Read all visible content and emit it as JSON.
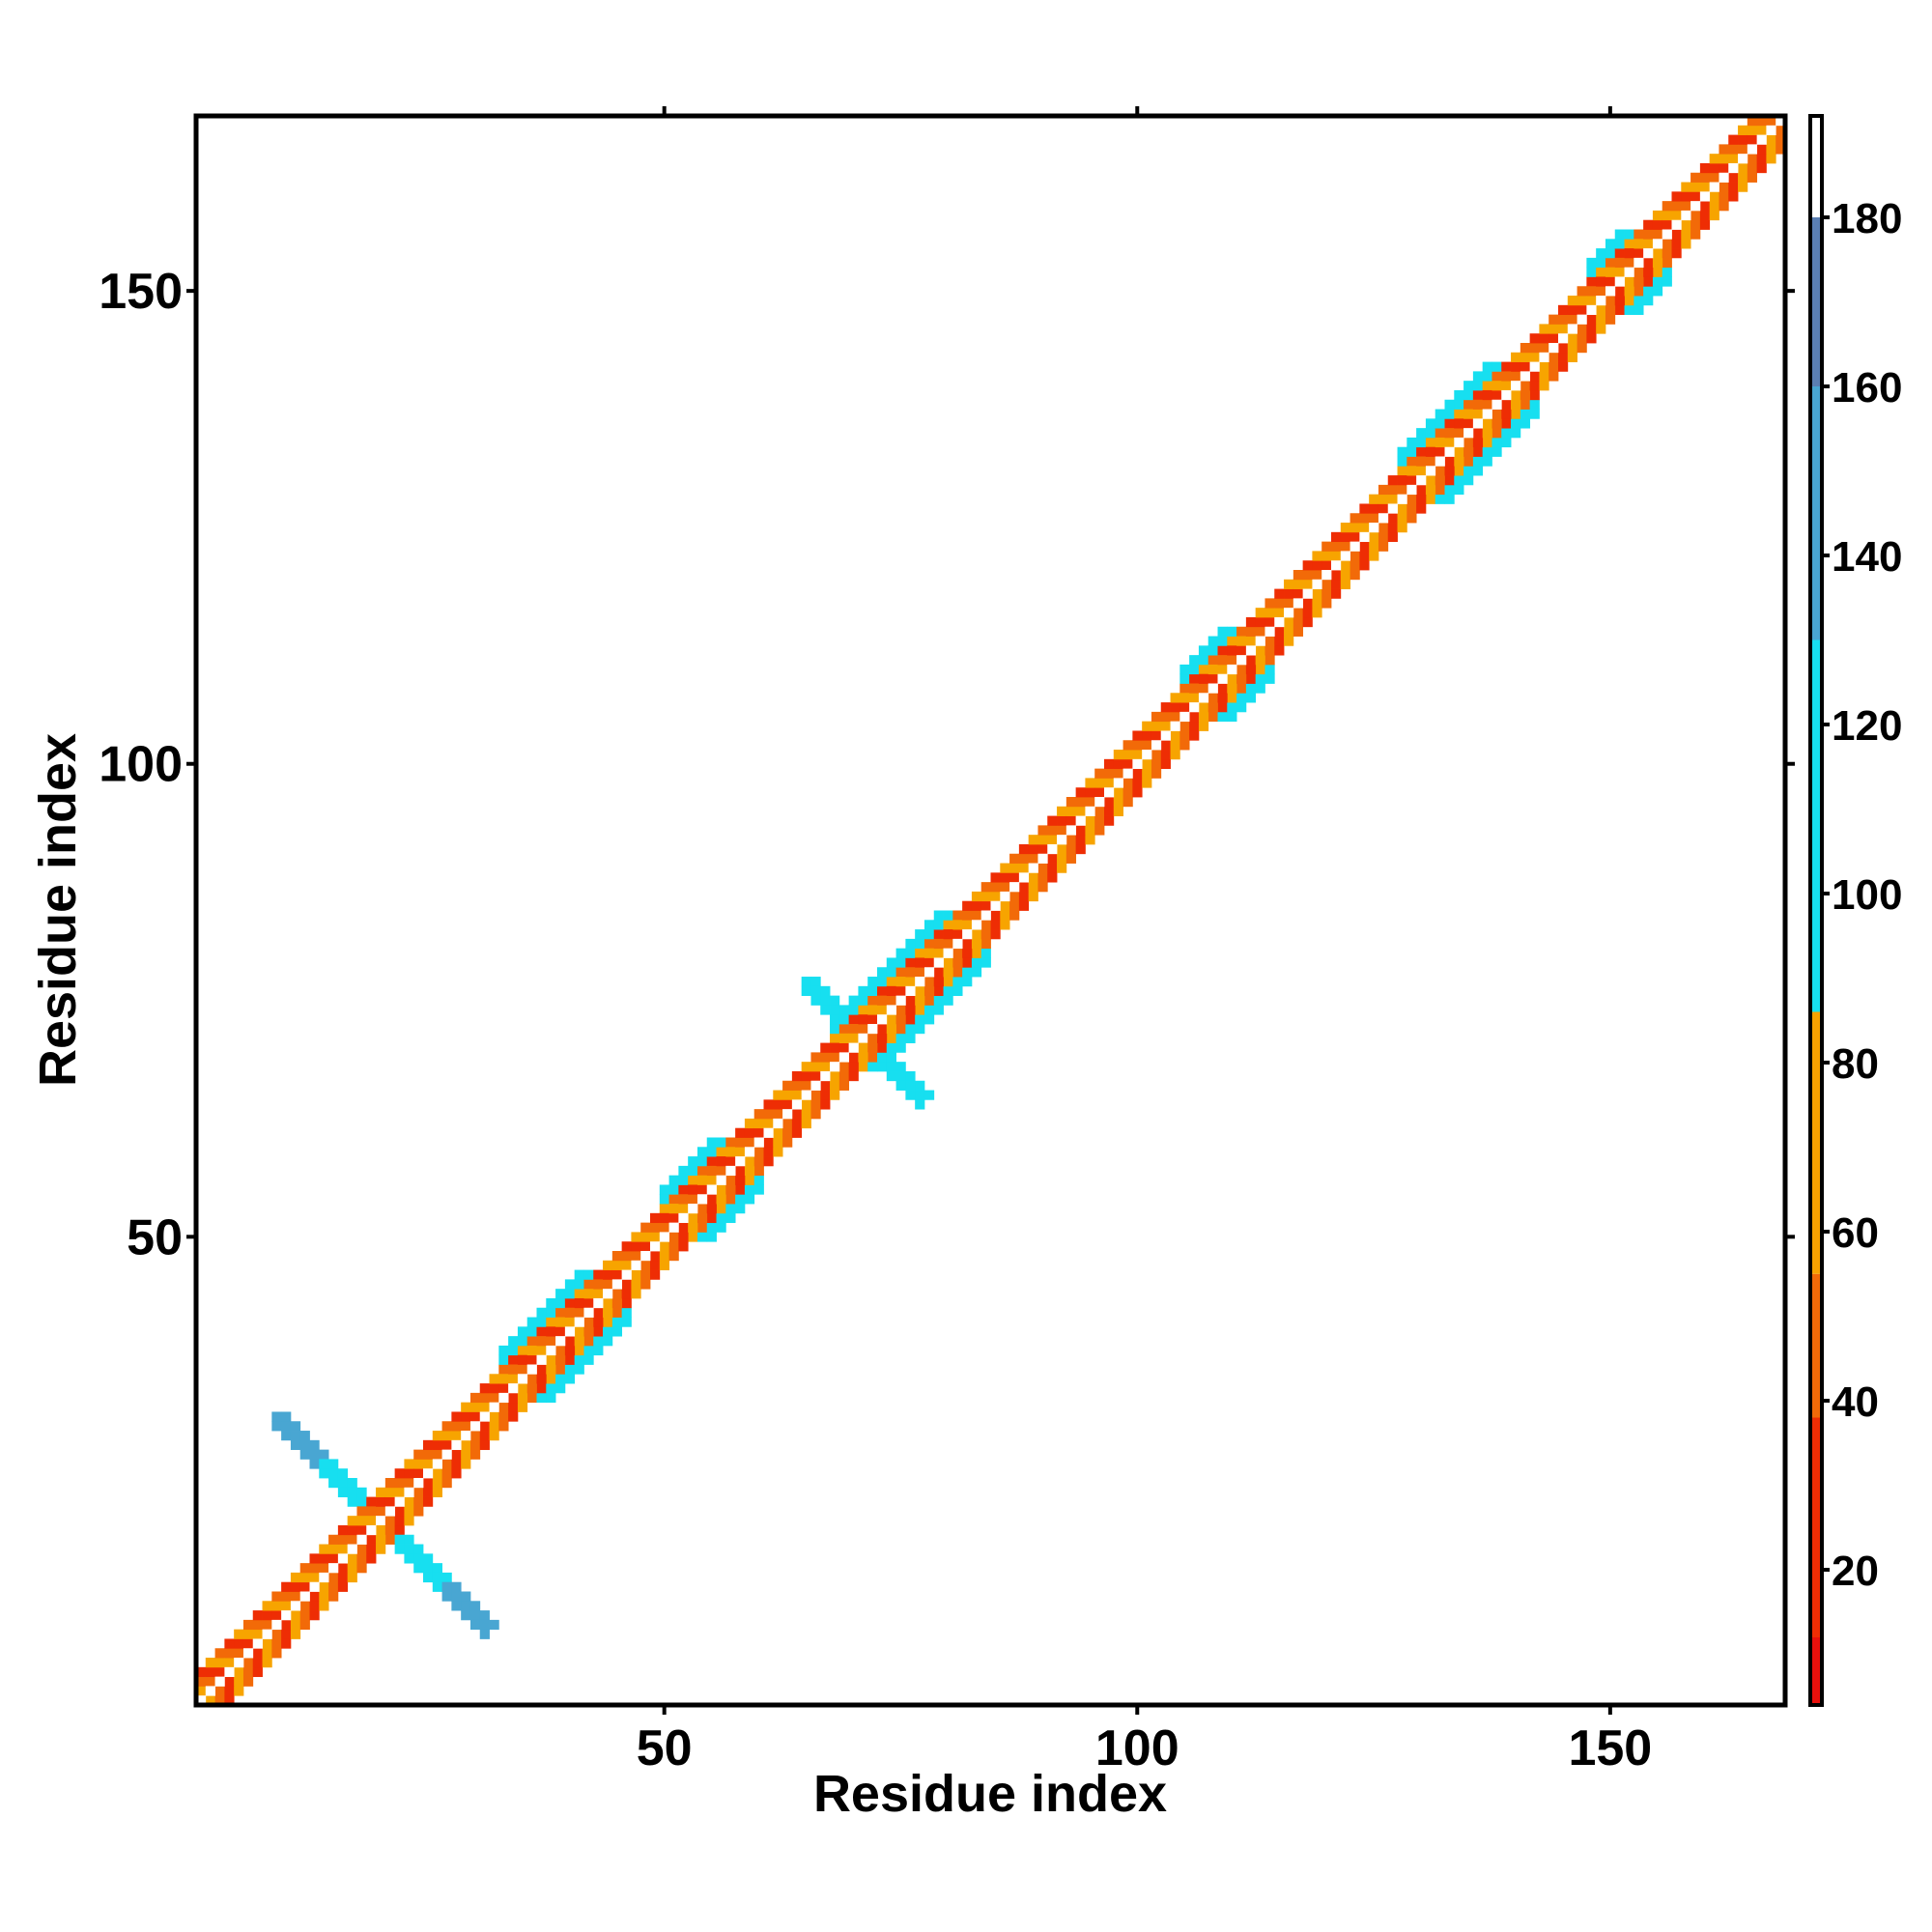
{
  "chart_data": {
    "type": "heatmap",
    "title": "",
    "xlabel": "Residue index",
    "ylabel": "Residue index",
    "xlim": [
      0.5,
      168.5
    ],
    "ylim": [
      0.5,
      168.5
    ],
    "x_ticks": [
      50,
      100,
      150
    ],
    "y_ticks": [
      50,
      100,
      150
    ],
    "grid": false,
    "colorbar": {
      "range": [
        4,
        192
      ],
      "ticks": [
        20,
        40,
        60,
        80,
        100,
        120,
        140,
        160,
        180
      ],
      "colors": [
        {
          "from": 4,
          "to": 12,
          "color": "#e8100c"
        },
        {
          "from": 12,
          "to": 38,
          "color": "#ee2d04"
        },
        {
          "from": 38,
          "to": 55,
          "color": "#f26a08"
        },
        {
          "from": 55,
          "to": 86,
          "color": "#f8a200"
        },
        {
          "from": 86,
          "to": 130,
          "color": "#17dff0"
        },
        {
          "from": 130,
          "to": 160,
          "color": "#49a6d2"
        },
        {
          "from": 160,
          "to": 180,
          "color": "#5b7fb3"
        },
        {
          "from": 180,
          "to": 192,
          "color": "#ffffff"
        }
      ]
    },
    "cell_colors": {
      "diag": "#ffffff",
      "d1": "#f7a400",
      "d2": "#ee2d04",
      "d3": "#f26a08",
      "d4": "#f7a400",
      "cyan": "#17dff0",
      "steel": "#49a6d2",
      "steel_dark": "#5b7fb3"
    },
    "band_regions": [
      {
        "from": 1,
        "to": 168,
        "width": 2,
        "color": "d1"
      },
      {
        "from": 1,
        "to": 168,
        "width": 3,
        "color": "d2"
      },
      {
        "from": 1,
        "to": 168,
        "width": 4,
        "color": "d3"
      }
    ],
    "helix_regions": [
      {
        "from": 33,
        "to": 44,
        "color": "cyan"
      },
      {
        "from": 50,
        "to": 58,
        "color": "cyan"
      },
      {
        "from": 68,
        "to": 82,
        "color": "cyan"
      },
      {
        "from": 105,
        "to": 112,
        "color": "cyan"
      },
      {
        "from": 128,
        "to": 140,
        "color": "cyan"
      },
      {
        "from": 148,
        "to": 154,
        "color": "cyan"
      }
    ],
    "cross_regions": [
      {
        "center": 20,
        "arm": 11,
        "inner": 6,
        "inner_color": "cyan",
        "outer_color": "steel"
      },
      {
        "center": 71,
        "arm": 6,
        "inner": 6,
        "inner_color": "cyan",
        "outer_color": "cyan"
      }
    ]
  }
}
